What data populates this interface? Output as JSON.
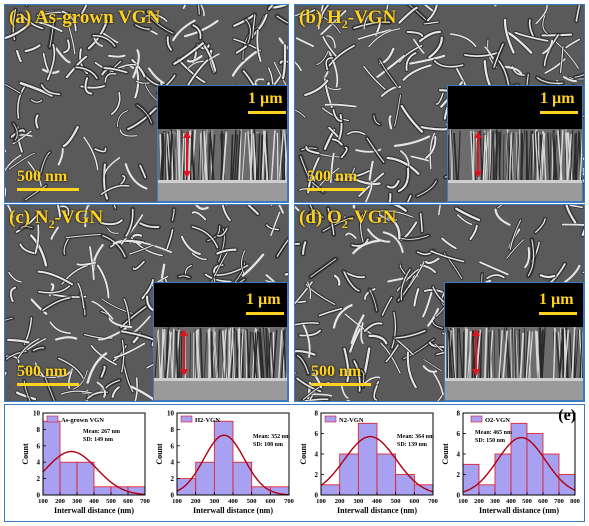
{
  "panels": [
    {
      "id": "a",
      "label_pre": "(a) As-grown VGN",
      "label_sub": "",
      "label_post": "",
      "scale": "500 nm",
      "inset_scale": "1 µm"
    },
    {
      "id": "b",
      "label_pre": "(b) H",
      "label_sub": "2",
      "label_post": "-VGN",
      "scale": "500 nm",
      "inset_scale": "1 µm"
    },
    {
      "id": "c",
      "label_pre": "(c) N",
      "label_sub": "2",
      "label_post": "-VGN",
      "scale": "500 nm",
      "inset_scale": "1 µm"
    },
    {
      "id": "d",
      "label_pre": "(d) O",
      "label_sub": "2",
      "label_post": "-VGN",
      "scale": "500 nm",
      "inset_scale": "1 µm"
    }
  ],
  "histograms": {
    "panel_label": "(e)",
    "ylabel": "Count",
    "xlabel": "Interwall distance (nm)"
  },
  "chart_data": [
    {
      "type": "bar",
      "legend": "As-grown VGN",
      "mean_text": "Mean: 267 nm",
      "sd_text": "SD: 149 nm",
      "bin_edges": [
        100,
        200,
        300,
        400,
        500,
        600,
        700
      ],
      "values": [
        9,
        4,
        4,
        1,
        1,
        1
      ],
      "xlim": [
        100,
        700
      ],
      "ylim": [
        0,
        10
      ],
      "yticks": [
        0,
        2,
        4,
        6,
        8,
        10
      ],
      "xticks": [
        100,
        200,
        300,
        400,
        500,
        600,
        700
      ],
      "fit": {
        "mean": 267,
        "sd": 149,
        "peak": 5.3
      }
    },
    {
      "type": "bar",
      "legend": "H2-VGN",
      "mean_text": "Mean: 352 nm",
      "sd_text": "SD: 108 nm",
      "bin_edges": [
        100,
        200,
        300,
        400,
        500,
        600,
        700
      ],
      "values": [
        2,
        4,
        9,
        4,
        1,
        1
      ],
      "xlim": [
        100,
        700
      ],
      "ylim": [
        0,
        10
      ],
      "yticks": [
        0,
        2,
        4,
        6,
        8,
        10
      ],
      "xticks": [
        100,
        200,
        300,
        400,
        500,
        600,
        700
      ],
      "fit": {
        "mean": 352,
        "sd": 108,
        "peak": 7.3
      }
    },
    {
      "type": "bar",
      "legend": "N2-VGN",
      "mean_text": "Mean: 364 nm",
      "sd_text": "SD: 139 nm",
      "bin_edges": [
        100,
        200,
        300,
        400,
        500,
        600,
        700
      ],
      "values": [
        1,
        4,
        7,
        4,
        2,
        1
      ],
      "xlim": [
        100,
        700
      ],
      "ylim": [
        0,
        8
      ],
      "yticks": [
        0,
        2,
        4,
        6,
        8
      ],
      "xticks": [
        100,
        200,
        300,
        400,
        500,
        600,
        700
      ],
      "fit": {
        "mean": 364,
        "sd": 139,
        "peak": 5.7
      }
    },
    {
      "type": "bar",
      "legend": "O2-VGN",
      "mean_text": "Mean: 465 nm",
      "sd_text": "SD: 150 nm",
      "bin_edges": [
        100,
        200,
        300,
        400,
        500,
        600,
        700,
        800
      ],
      "values": [
        3,
        1,
        4,
        7,
        6,
        4,
        2
      ],
      "xlim": [
        100,
        800
      ],
      "ylim": [
        0,
        8
      ],
      "yticks": [
        0,
        2,
        4,
        6,
        8
      ],
      "xticks": [
        100,
        200,
        300,
        400,
        500,
        600,
        700,
        800
      ],
      "fit": {
        "mean": 465,
        "sd": 150,
        "peak": 5.6
      }
    }
  ]
}
